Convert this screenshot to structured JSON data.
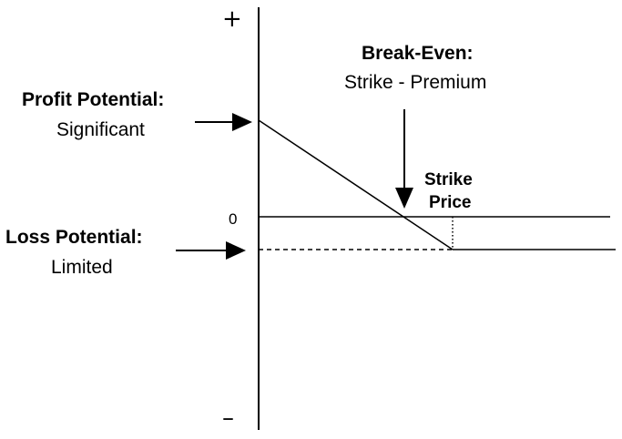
{
  "axis": {
    "plus_label": "+",
    "minus_label": "–",
    "zero_label": "0"
  },
  "annotations": {
    "break_even": {
      "title": "Break-Even:",
      "formula": "Strike - Premium"
    },
    "profit": {
      "title": "Profit Potential:",
      "value": "Significant"
    },
    "loss": {
      "title": "Loss Potential:",
      "value": "Limited"
    },
    "strike": {
      "line1": "Strike",
      "line2": "Price"
    }
  },
  "colors": {
    "ink": "#000000",
    "background": "#ffffff"
  },
  "chart_data": {
    "type": "line",
    "description_series": [
      {
        "values": [
          "significant profit at low price",
          "zero at break-even",
          "limited loss at and above strike"
        ]
      }
    ]
  }
}
